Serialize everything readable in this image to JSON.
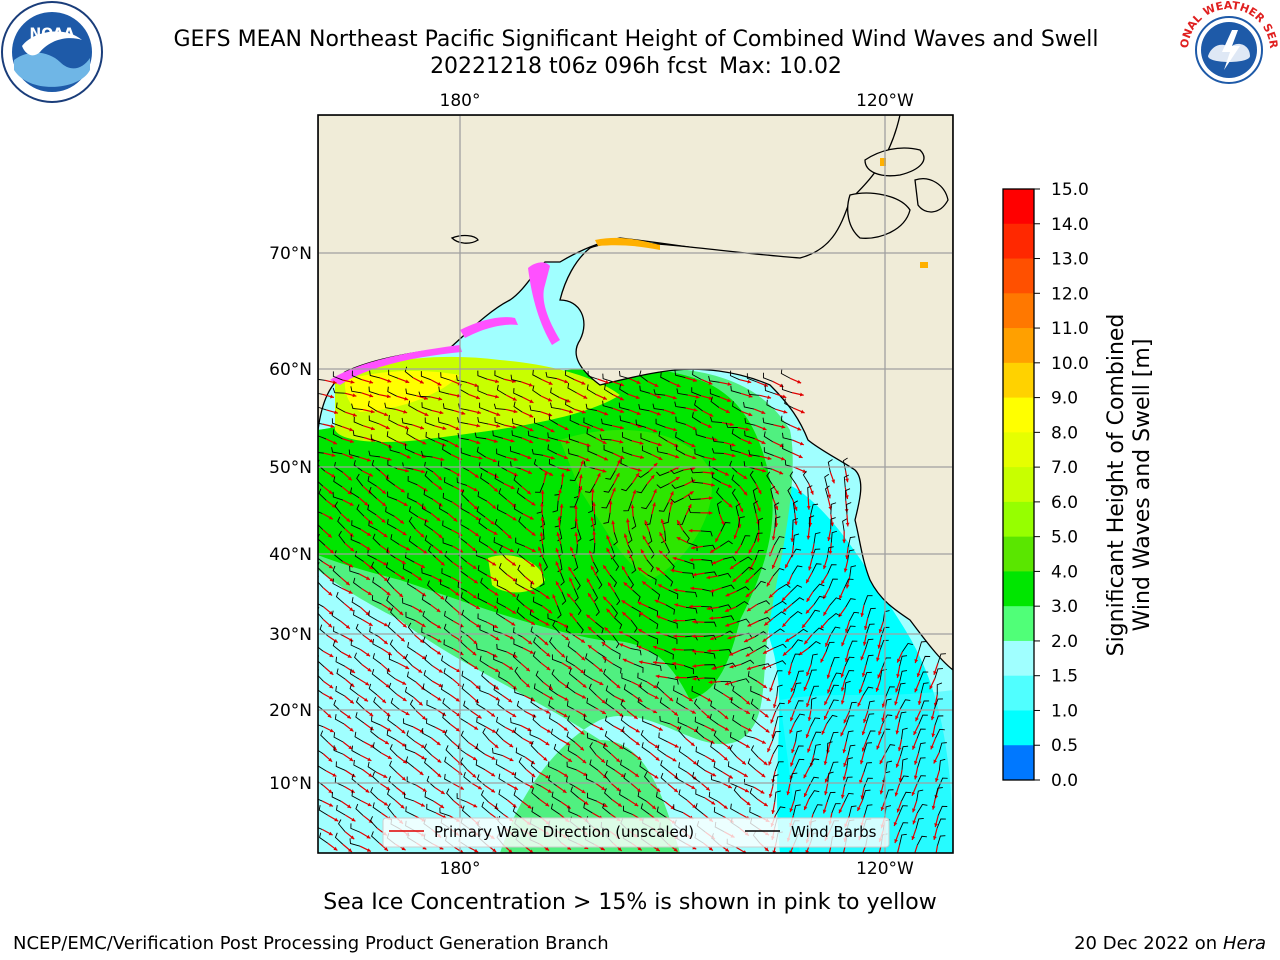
{
  "header": {
    "title_line1": "GEFS MEAN Northeast Pacific Significant Height of Combined Wind Waves and Swell",
    "title_date": "20221218 t06z 096h fcst",
    "title_max": "Max: 10.02"
  },
  "logos": {
    "left": "NOAA",
    "right": "NATIONAL WEATHER SERVICE"
  },
  "axes": {
    "top_lon": [
      "180°",
      "120°W"
    ],
    "bottom_lon": [
      "180°",
      "120°W"
    ],
    "lat": [
      "70°N",
      "60°N",
      "50°N",
      "40°N",
      "30°N",
      "20°N",
      "10°N"
    ]
  },
  "legend": {
    "wave_dir": "Primary Wave Direction (unscaled)",
    "wind_barbs": "Wind Barbs"
  },
  "colorbar": {
    "label_line1": "Significant Height of Combined",
    "label_line2": "Wind Waves and Swell [m]",
    "ticks": [
      "15.0",
      "14.0",
      "13.0",
      "12.0",
      "11.0",
      "10.0",
      "9.0",
      "8.0",
      "7.0",
      "6.0",
      "5.0",
      "4.0",
      "3.0",
      "2.0",
      "1.5",
      "1.0",
      "0.5",
      "0.0"
    ],
    "colors": [
      "#ff0000",
      "#ff2800",
      "#ff5000",
      "#ff7800",
      "#ffa000",
      "#ffd200",
      "#ffff00",
      "#e6ff00",
      "#c8ff00",
      "#96ff00",
      "#5ae600",
      "#00e600",
      "#50ff78",
      "#a0ffff",
      "#50ffff",
      "#00ffff",
      "#0078ff",
      "#0000ff"
    ]
  },
  "map_colors": {
    "land": "#f0ecd8",
    "swell_low": "#a0ffff",
    "swell_mid": "#00ffff",
    "waves_3": "#50f080",
    "waves_4": "#00e600",
    "waves_5": "#5ae600",
    "waves_7": "#c8ff00",
    "waves_9": "#ffff00",
    "ice_pink": "#ff50ff",
    "arrow": "#e00000",
    "barb": "#000000"
  },
  "caption": "Sea Ice Concentration > 15% is shown in pink to yellow",
  "footer": {
    "left": "NCEP/EMC/Verification Post Processing Product Generation Branch",
    "right_date": "20 Dec 2022 on",
    "right_host": "Hera"
  }
}
